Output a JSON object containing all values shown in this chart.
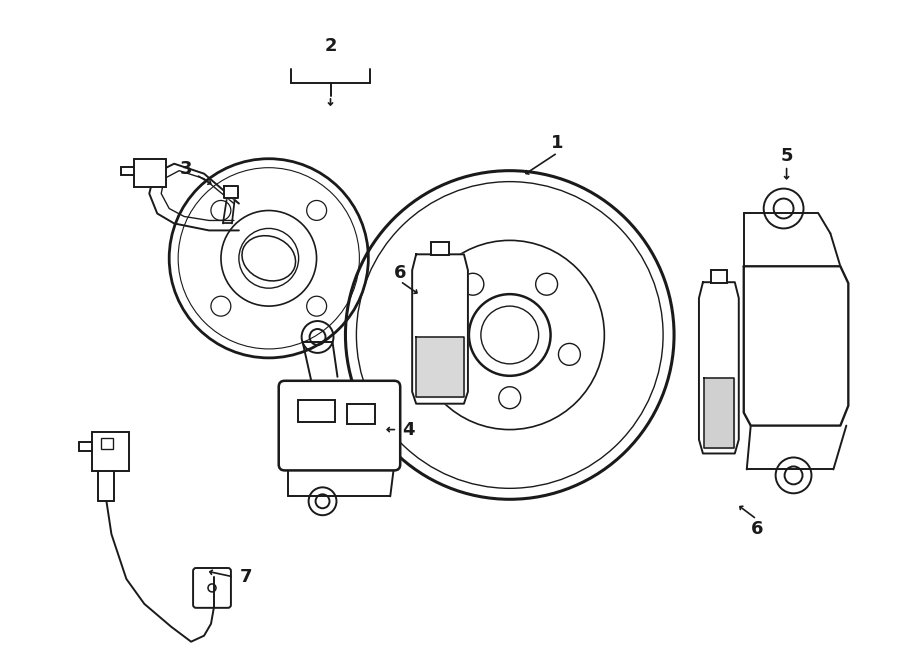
{
  "bg_color": "#ffffff",
  "line_color": "#1a1a1a",
  "lw": 1.4,
  "fig_width": 9.0,
  "fig_height": 6.61
}
